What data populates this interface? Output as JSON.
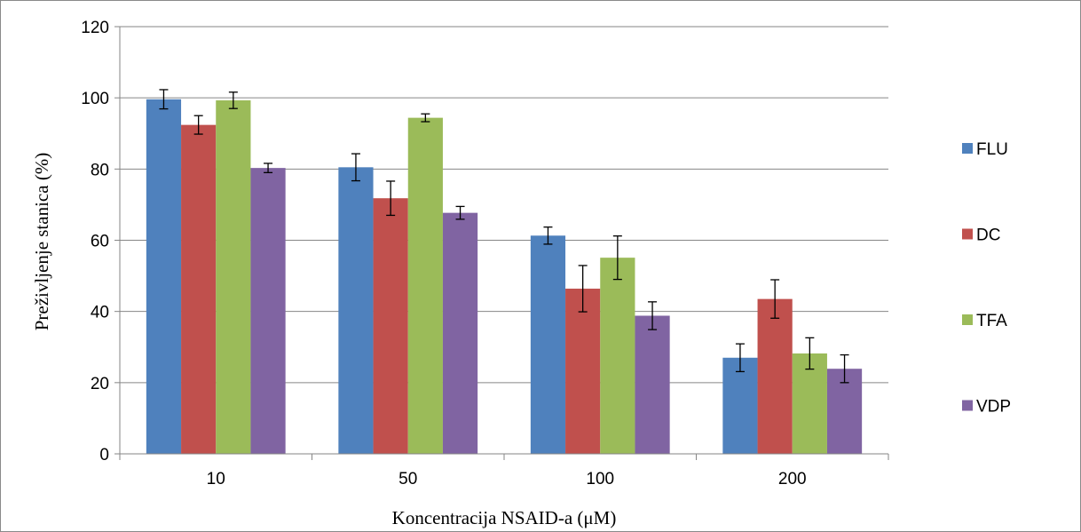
{
  "chart_data": {
    "type": "bar",
    "title": "",
    "xlabel": "Koncentracija NSAID-a (μM)",
    "ylabel": "Preživljenje stanica (%)",
    "ylim": [
      0,
      120
    ],
    "yticks": [
      0,
      20,
      40,
      60,
      80,
      100,
      120
    ],
    "grid": true,
    "legend_position": "right",
    "categories": [
      "10",
      "50",
      "100",
      "200"
    ],
    "series": [
      {
        "name": "FLU",
        "color": "#4f81bd",
        "values": [
          99.6,
          80.5,
          61.3,
          27.0
        ],
        "errors": [
          2.7,
          3.8,
          2.4,
          3.9
        ]
      },
      {
        "name": "DC",
        "color": "#c0504d",
        "values": [
          92.4,
          71.8,
          46.4,
          43.5
        ],
        "errors": [
          2.6,
          4.8,
          6.5,
          5.4
        ]
      },
      {
        "name": "TFA",
        "color": "#9bbb59",
        "values": [
          99.3,
          94.4,
          55.1,
          28.2
        ],
        "errors": [
          2.3,
          1.1,
          6.1,
          4.4
        ]
      },
      {
        "name": "VDP",
        "color": "#8064a2",
        "values": [
          80.3,
          67.7,
          38.8,
          23.9
        ],
        "errors": [
          1.3,
          1.8,
          3.9,
          3.9
        ]
      }
    ]
  }
}
